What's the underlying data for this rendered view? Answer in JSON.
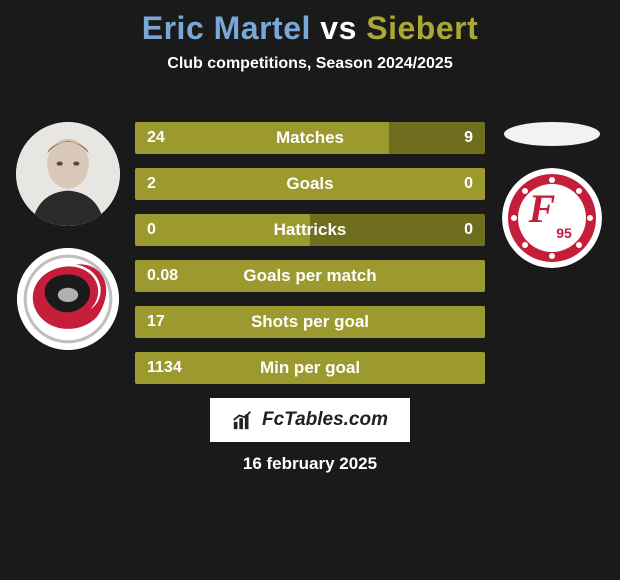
{
  "colors": {
    "background": "#1a1a1a",
    "title_p1": "#7aa8d6",
    "title_p2": "#a8a832",
    "text": "#ffffff",
    "bar_left": "#9c9a2e",
    "bar_right": "#706d1f",
    "bar_text": "#ffffff",
    "watermark_bg": "#ffffff",
    "watermark_text": "#222222",
    "avatar_bg": "#f2f2f2",
    "ellipse_bg": "#f2f2f2",
    "badge_ring": "#c41e3a",
    "badge_inner": "#ffffff",
    "badge_text": "#c41e3a",
    "logo2_bg": "#ffffff",
    "logo2_ring": "#1a1a1a",
    "logo2_swirl": "#c41e3a"
  },
  "title": {
    "player1": "Eric Martel",
    "vs": "vs",
    "player2": "Siebert",
    "fontsize": 32
  },
  "subtitle": {
    "text": "Club competitions, Season 2024/2025",
    "fontsize": 16
  },
  "bars": {
    "label_fontsize": 17,
    "value_fontsize": 16,
    "rows": [
      {
        "label": "Matches",
        "left_val": "24",
        "right_val": "9",
        "left_pct": 72.7,
        "right_pct": 27.3
      },
      {
        "label": "Goals",
        "left_val": "2",
        "right_val": "0",
        "left_pct": 100,
        "right_pct": 0
      },
      {
        "label": "Hattricks",
        "left_val": "0",
        "right_val": "0",
        "left_pct": 50,
        "right_pct": 50
      },
      {
        "label": "Goals per match",
        "left_val": "0.08",
        "right_val": "",
        "left_pct": 100,
        "right_pct": 0
      },
      {
        "label": "Shots per goal",
        "left_val": "17",
        "right_val": "",
        "left_pct": 100,
        "right_pct": 0
      },
      {
        "label": "Min per goal",
        "left_val": "1134",
        "right_val": "",
        "left_pct": 100,
        "right_pct": 0
      }
    ]
  },
  "left_graphics": {
    "avatar_size": 104,
    "logo_size": 102
  },
  "right_graphics": {
    "ellipse_w": 96,
    "ellipse_h": 24,
    "badge_size": 100
  },
  "watermark": {
    "text": "FcTables.com",
    "fontsize": 19
  },
  "date": {
    "text": "16 february 2025",
    "fontsize": 17
  }
}
